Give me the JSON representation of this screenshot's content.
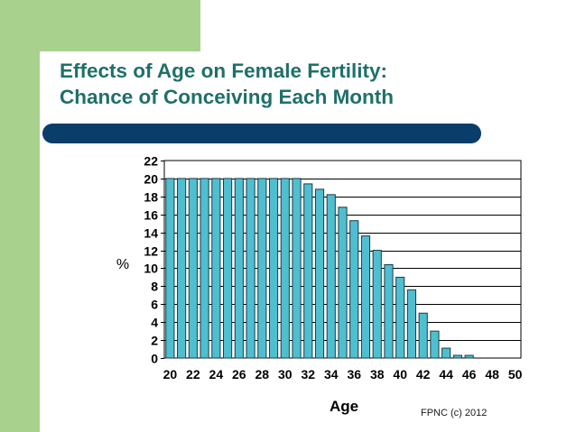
{
  "slide": {
    "title_line1": "Effects of Age on Female Fertility:",
    "title_line2": "Chance of Conceiving Each Month",
    "footer": "FPNC (c) 2012"
  },
  "colors": {
    "accent_green": "#a9d18e",
    "title_teal": "#1f7069",
    "bar_navy": "#0b3d6b",
    "bar_fill": "#4fbfd0",
    "bar_stroke": "#1c3b48"
  },
  "chart_data": {
    "type": "bar",
    "title": "",
    "xlabel": "Age",
    "ylabel": "%",
    "ylim": [
      0,
      22
    ],
    "yticks": [
      "0",
      "2",
      "4",
      "6",
      "8",
      "10",
      "12",
      "14",
      "16",
      "18",
      "20",
      "22"
    ],
    "grid": true,
    "xtick_labels": [
      "20",
      "22",
      "24",
      "26",
      "28",
      "30",
      "32",
      "34",
      "36",
      "38",
      "40",
      "42",
      "44",
      "46",
      "48",
      "50"
    ],
    "categories": [
      "20",
      "21",
      "22",
      "23",
      "24",
      "25",
      "26",
      "27",
      "28",
      "29",
      "30",
      "31",
      "32",
      "33",
      "34",
      "35",
      "36",
      "37",
      "38",
      "39",
      "40",
      "41",
      "42",
      "43",
      "44",
      "45",
      "46",
      "47",
      "48",
      "49",
      "50"
    ],
    "values": [
      20,
      20,
      20,
      20,
      20,
      20,
      20,
      20,
      20,
      20,
      20,
      20,
      19.4,
      18.8,
      18.2,
      16.8,
      15.3,
      13.6,
      12,
      10.4,
      9,
      7.6,
      5,
      3,
      1.1,
      0.3,
      0.3,
      0,
      0,
      0,
      0
    ]
  }
}
